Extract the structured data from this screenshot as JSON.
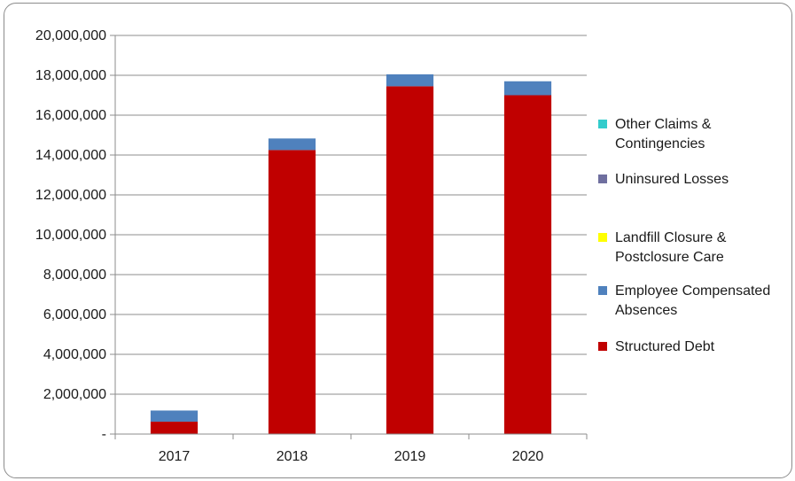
{
  "chart_data": {
    "type": "bar",
    "stacked": true,
    "title": "",
    "xlabel": "",
    "ylabel": "",
    "categories": [
      "2017",
      "2018",
      "2019",
      "2020"
    ],
    "ylim": [
      0,
      20000000
    ],
    "yticks": [
      0,
      2000000,
      4000000,
      6000000,
      8000000,
      10000000,
      12000000,
      14000000,
      16000000,
      18000000,
      20000000
    ],
    "ytick_labels": [
      "-",
      "2,000,000",
      "4,000,000",
      "6,000,000",
      "8,000,000",
      "10,000,000",
      "12,000,000",
      "14,000,000",
      "16,000,000",
      "18,000,000",
      "20,000,000"
    ],
    "grid": true,
    "legend_position": "right",
    "series": [
      {
        "name": "Structured Debt",
        "color": "#c00000",
        "values": [
          620000,
          14250000,
          17450000,
          17000000
        ]
      },
      {
        "name": "Employee Compensated Absences",
        "color": "#4f81bd",
        "values": [
          560000,
          580000,
          600000,
          700000
        ]
      },
      {
        "name": "Landfill Closure & Postclosure Care",
        "color": "#ffff00",
        "values": [
          0,
          0,
          0,
          0
        ]
      },
      {
        "name": "Uninsured Losses",
        "color": "#6f6f9f",
        "values": [
          0,
          0,
          0,
          0
        ]
      },
      {
        "name": "Other Claims & Contingencies",
        "color": "#33cccc",
        "values": [
          0,
          0,
          0,
          0
        ]
      }
    ],
    "legend_order": [
      "Other Claims & Contingencies",
      "Uninsured Losses",
      "Landfill Closure & Postclosure Care",
      "Employee Compensated Absences",
      "Structured Debt"
    ]
  }
}
